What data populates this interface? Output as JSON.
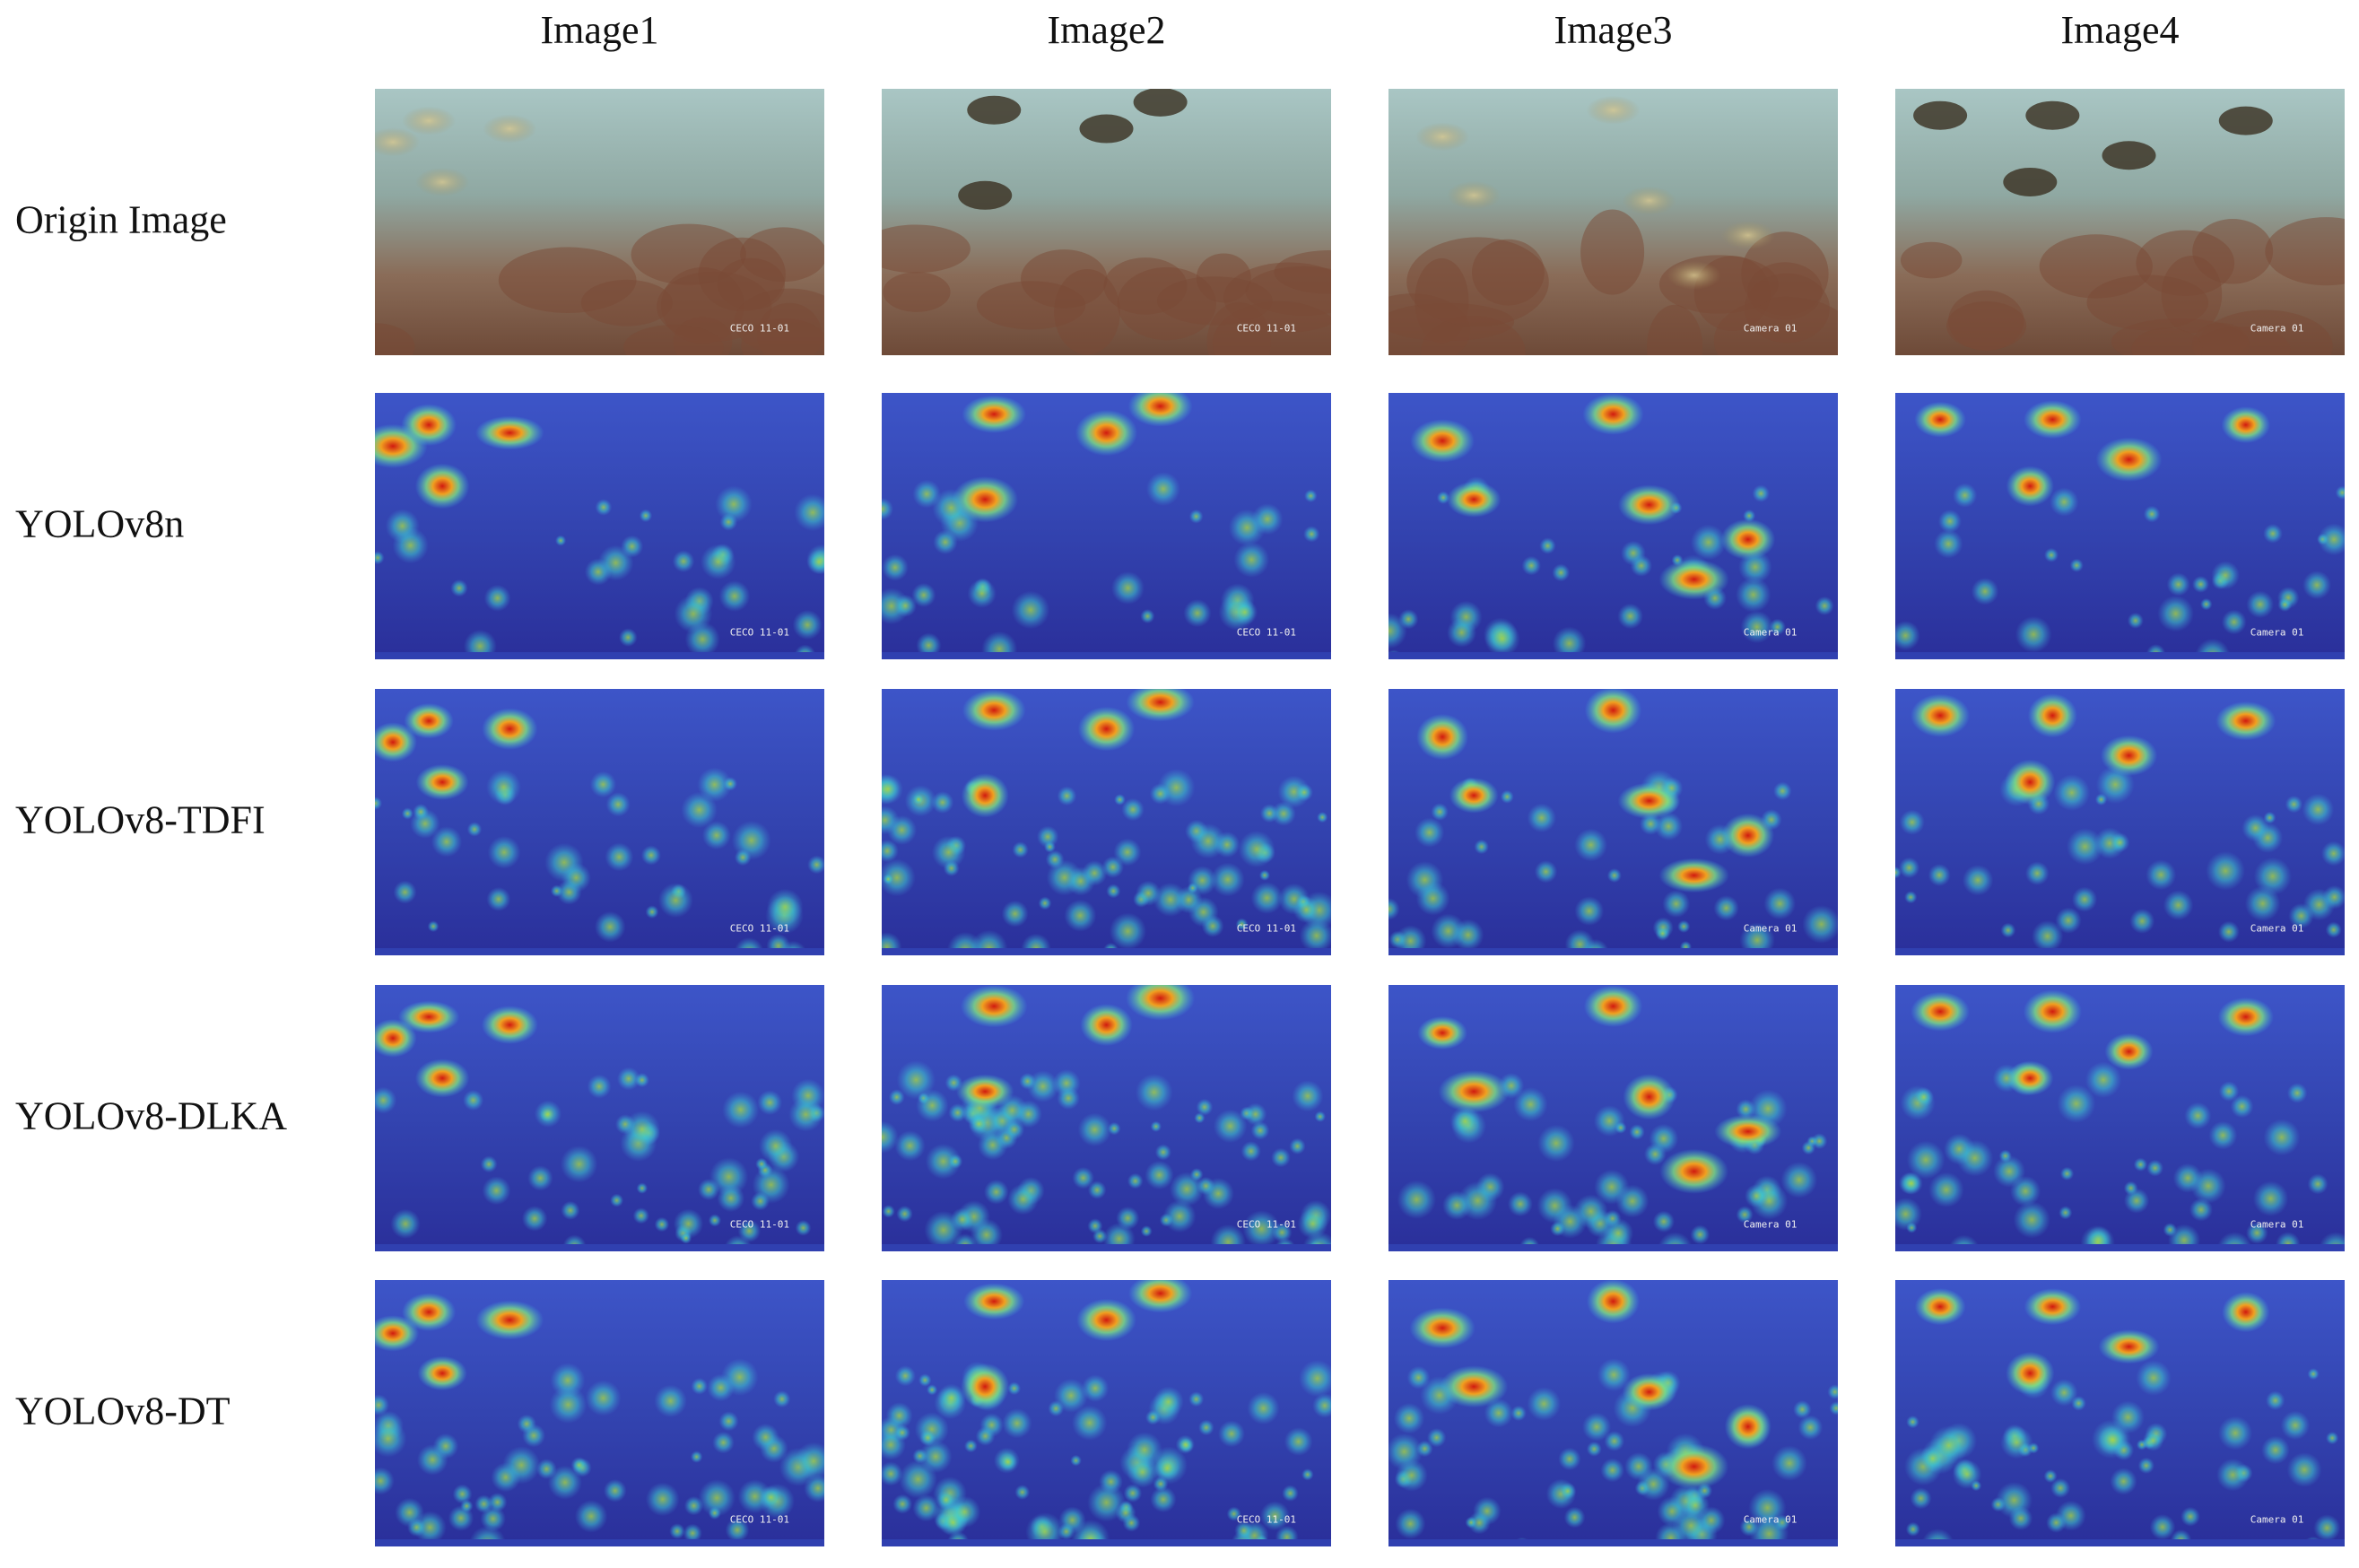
{
  "columns": [
    {
      "title": "Image1",
      "watermark": "CECO 11-01"
    },
    {
      "title": "Image2",
      "watermark": "CECO 11-01"
    },
    {
      "title": "Image3",
      "watermark": "Camera 01"
    },
    {
      "title": "Image4",
      "watermark": "Camera 01"
    }
  ],
  "rows": [
    "Origin Image",
    "YOLOv8n",
    "YOLOv8-TDFI",
    "YOLOv8-DLKA",
    "YOLOv8-DT"
  ]
}
